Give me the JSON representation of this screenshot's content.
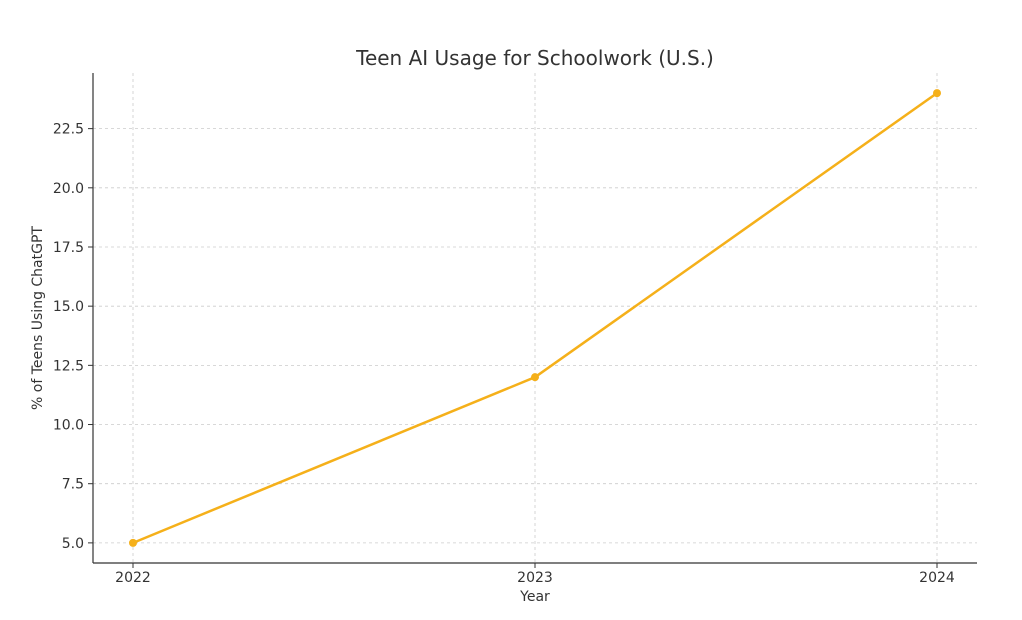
{
  "chart_data": {
    "type": "line",
    "title": "Teen AI Usage for Schoolwork (U.S.)",
    "xlabel": "Year",
    "ylabel": "% of Teens Using ChatGPT",
    "x": [
      "2022",
      "2023",
      "2024"
    ],
    "series": [
      {
        "values": [
          5,
          12,
          24
        ],
        "color": "#f5b01a"
      }
    ],
    "ylim": [
      4.15,
      24.85
    ],
    "yticks": [
      5.0,
      7.5,
      10.0,
      12.5,
      15.0,
      17.5,
      20.0,
      22.5
    ],
    "ytick_labels": [
      "5.0",
      "7.5",
      "10.0",
      "12.5",
      "15.0",
      "17.5",
      "20.0",
      "22.5"
    ],
    "grid": true,
    "marker": "circle"
  }
}
